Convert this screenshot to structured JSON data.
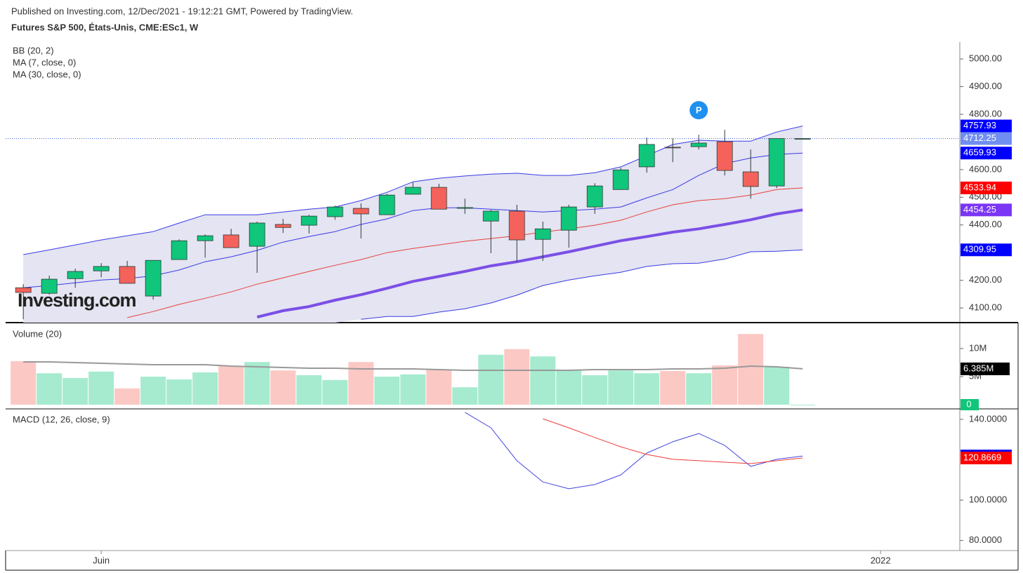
{
  "header": {
    "published": "Published on Investing.com, 12/Dec/2021 - 19:12:21 GMT, Powered by TradingView.",
    "symbol": "Futures S&P 500, États-Unis, CME:ESc1, W"
  },
  "watermark": "Investing.com",
  "chart_data": [
    {
      "type": "candlestick",
      "legend": [
        "BB (20, 2)",
        "MA (7, close, 0)",
        "MA (30, close, 0)"
      ],
      "up_color": "#0fc67b",
      "down_color": "#f4625b",
      "wick_color": "#2b3a36",
      "last_price_color": "#6f8ef0",
      "band_fill": "#e4e4f2",
      "open": [
        4173,
        4153,
        4206,
        4234,
        4250,
        4143,
        4275,
        4343,
        4364,
        4323,
        4402,
        4399,
        4430,
        4460,
        4437,
        4511,
        4536,
        4460,
        4414,
        4450,
        4348,
        4381,
        4465,
        4528,
        4610,
        4681,
        4683,
        4701,
        4592,
        4541,
        4712.25
      ],
      "high": [
        4186,
        4217,
        4242,
        4262,
        4270,
        4272,
        4348,
        4366,
        4386,
        4412,
        4422,
        4437,
        4470,
        4478,
        4513,
        4554,
        4549,
        4495,
        4455,
        4473,
        4412,
        4473,
        4551,
        4607,
        4716,
        4713,
        4726,
        4744,
        4673,
        4712.25,
        4712.25
      ],
      "low": [
        4059,
        4148,
        4173,
        4211,
        4189,
        4130,
        4275,
        4282,
        4318,
        4227,
        4371,
        4369,
        4419,
        4351,
        4437,
        4511,
        4457,
        4440,
        4298,
        4267,
        4270,
        4318,
        4440,
        4528,
        4589,
        4627,
        4673,
        4579,
        4495,
        4533,
        4712.25
      ],
      "close": [
        4156,
        4204,
        4232,
        4250,
        4189,
        4272,
        4343,
        4361,
        4318,
        4407,
        4391,
        4432,
        4465,
        4440,
        4508,
        4536,
        4457,
        4463,
        4450,
        4346,
        4386,
        4465,
        4541,
        4599,
        4691,
        4680,
        4696,
        4597,
        4539,
        4712.25,
        4712.25
      ],
      "series": [
        {
          "color": "#3a3ae6",
          "label_color": "#0000ff",
          "values": [
            4293,
            4310,
            4328,
            4346,
            4361,
            4376,
            4407,
            4437,
            4437,
            4437,
            4447,
            4457,
            4465,
            4488,
            4518,
            4556,
            4569,
            4577,
            4584,
            4587,
            4579,
            4579,
            4589,
            4610,
            4650,
            4691,
            4706,
            4703,
            4703,
            4736,
            4757.93
          ]
        },
        {
          "color": "#3a3ae6",
          "label_color": "#0000ff",
          "values": [
            4173,
            4181,
            4191,
            4201,
            4206,
            4216,
            4237,
            4267,
            4285,
            4308,
            4338,
            4358,
            4376,
            4402,
            4422,
            4452,
            4462,
            4462,
            4457,
            4452,
            4447,
            4452,
            4457,
            4465,
            4498,
            4528,
            4579,
            4622,
            4642,
            4655,
            4659.93
          ]
        },
        {
          "color": "#3a3ae6",
          "label_color": "#0000ff",
          "values": [
            null,
            null,
            null,
            null,
            null,
            null,
            null,
            null,
            null,
            null,
            null,
            null,
            null,
            4059,
            4069,
            4069,
            4085,
            4097,
            4118,
            4146,
            4181,
            4201,
            4216,
            4229,
            4250,
            4260,
            4262,
            4277,
            4303,
            4305,
            4309.95
          ]
        },
        {
          "color": "#e8413a",
          "label_color": "#ff0000",
          "values": [
            null,
            null,
            null,
            null,
            4065,
            4087,
            4113,
            4135,
            4158,
            4186,
            4209,
            4232,
            4254,
            4275,
            4300,
            4315,
            4328,
            4341,
            4351,
            4361,
            4374,
            4386,
            4399,
            4417,
            4447,
            4473,
            4488,
            4495,
            4508,
            4528,
            4533.94
          ]
        },
        {
          "color": "#7b4fe6",
          "label_color": "#7b35f5",
          "width": 4,
          "values": [
            null,
            null,
            null,
            null,
            null,
            null,
            null,
            null,
            null,
            4067,
            4090,
            4105,
            4128,
            4148,
            4171,
            4196,
            4214,
            4232,
            4252,
            4267,
            4285,
            4303,
            4323,
            4343,
            4358,
            4374,
            4386,
            4402,
            4419,
            4440,
            4454.25
          ]
        }
      ],
      "annotations": [
        {
          "text": "P",
          "x": 26,
          "color": "#1e90f0"
        }
      ],
      "xlim": [
        -0.68,
        36.05
      ],
      "ylim": [
        4047,
        5061
      ],
      "yticks": [
        {
          "value": 4100,
          "label": "4100.00"
        },
        {
          "value": 4200,
          "label": "4200.00"
        },
        {
          "value": 4400,
          "label": "4400.00"
        },
        {
          "value": 4500,
          "label": "4500.00"
        },
        {
          "value": 4600,
          "label": "4600.00"
        },
        {
          "value": 4800,
          "label": "4800.00"
        },
        {
          "value": 4900,
          "label": "4900.00"
        },
        {
          "value": 5000,
          "label": "5000.00"
        }
      ]
    },
    {
      "type": "bar",
      "title": "Volume (20)",
      "up_color": "#a6ebcf",
      "down_color": "#fcc8c4",
      "last_label_color": "#0fc67b",
      "values": [
        7750000,
        5600000,
        4750000,
        5900000,
        2900000,
        5000000,
        4500000,
        5750000,
        6900000,
        7600000,
        6100000,
        5250000,
        4400000,
        7600000,
        5000000,
        5400000,
        6250000,
        3100000,
        8900000,
        9900000,
        8600000,
        6250000,
        5250000,
        6100000,
        5600000,
        6000000,
        5600000,
        7000000,
        12600000,
        6750000,
        0
      ],
      "ma": {
        "color": "#999999",
        "label_color": "#000000",
        "value_label": "6.385M",
        "values": [
          7625000,
          7625000,
          7500000,
          7375000,
          7250000,
          7125000,
          7125000,
          7125000,
          6875000,
          6750000,
          6625000,
          6500000,
          6500000,
          6375000,
          6375000,
          6375000,
          6250000,
          6125000,
          6125000,
          6125000,
          6125000,
          6125000,
          6250000,
          6250000,
          6250000,
          6375000,
          6375000,
          6500000,
          6875000,
          6750000,
          6385000
        ]
      },
      "xlim": [
        -0.68,
        36.05
      ],
      "ylim": [
        -750000,
        14375000
      ],
      "yticks": [
        {
          "value": 5000000,
          "label": "5M"
        },
        {
          "value": 10000000,
          "label": "10M"
        }
      ]
    },
    {
      "type": "line",
      "title": "MACD (12, 26, close, 9)",
      "series": [
        {
          "color": "#4444e0",
          "label_color": "#0000ff",
          "values": [
            null,
            null,
            null,
            null,
            null,
            null,
            null,
            null,
            null,
            null,
            null,
            null,
            null,
            null,
            null,
            null,
            null,
            143.5,
            135.8,
            119.5,
            109,
            105.6,
            107.7,
            112.5,
            123.3,
            128.9,
            133,
            127.1,
            116.7,
            120.2,
            121.8579
          ]
        },
        {
          "color": "#f03a3a",
          "label_color": "#ff0000",
          "values": [
            null,
            null,
            null,
            null,
            null,
            null,
            null,
            null,
            null,
            null,
            null,
            null,
            null,
            null,
            null,
            null,
            null,
            null,
            null,
            null,
            140.3,
            135.8,
            131,
            126.4,
            122.6,
            120.2,
            119.5,
            118.8,
            118.1,
            119.5,
            120.8669
          ]
        }
      ],
      "xlim": [
        -0.68,
        36.05
      ],
      "ylim": [
        75,
        144.5
      ],
      "yticks": [
        {
          "value": 80,
          "label": "80.0000"
        },
        {
          "value": 100,
          "label": "100.0000"
        },
        {
          "value": 140,
          "label": "140.0000"
        }
      ],
      "xticks": [
        {
          "value": 3,
          "label": "Juin"
        },
        {
          "value": 33,
          "label": "2022"
        }
      ]
    }
  ]
}
